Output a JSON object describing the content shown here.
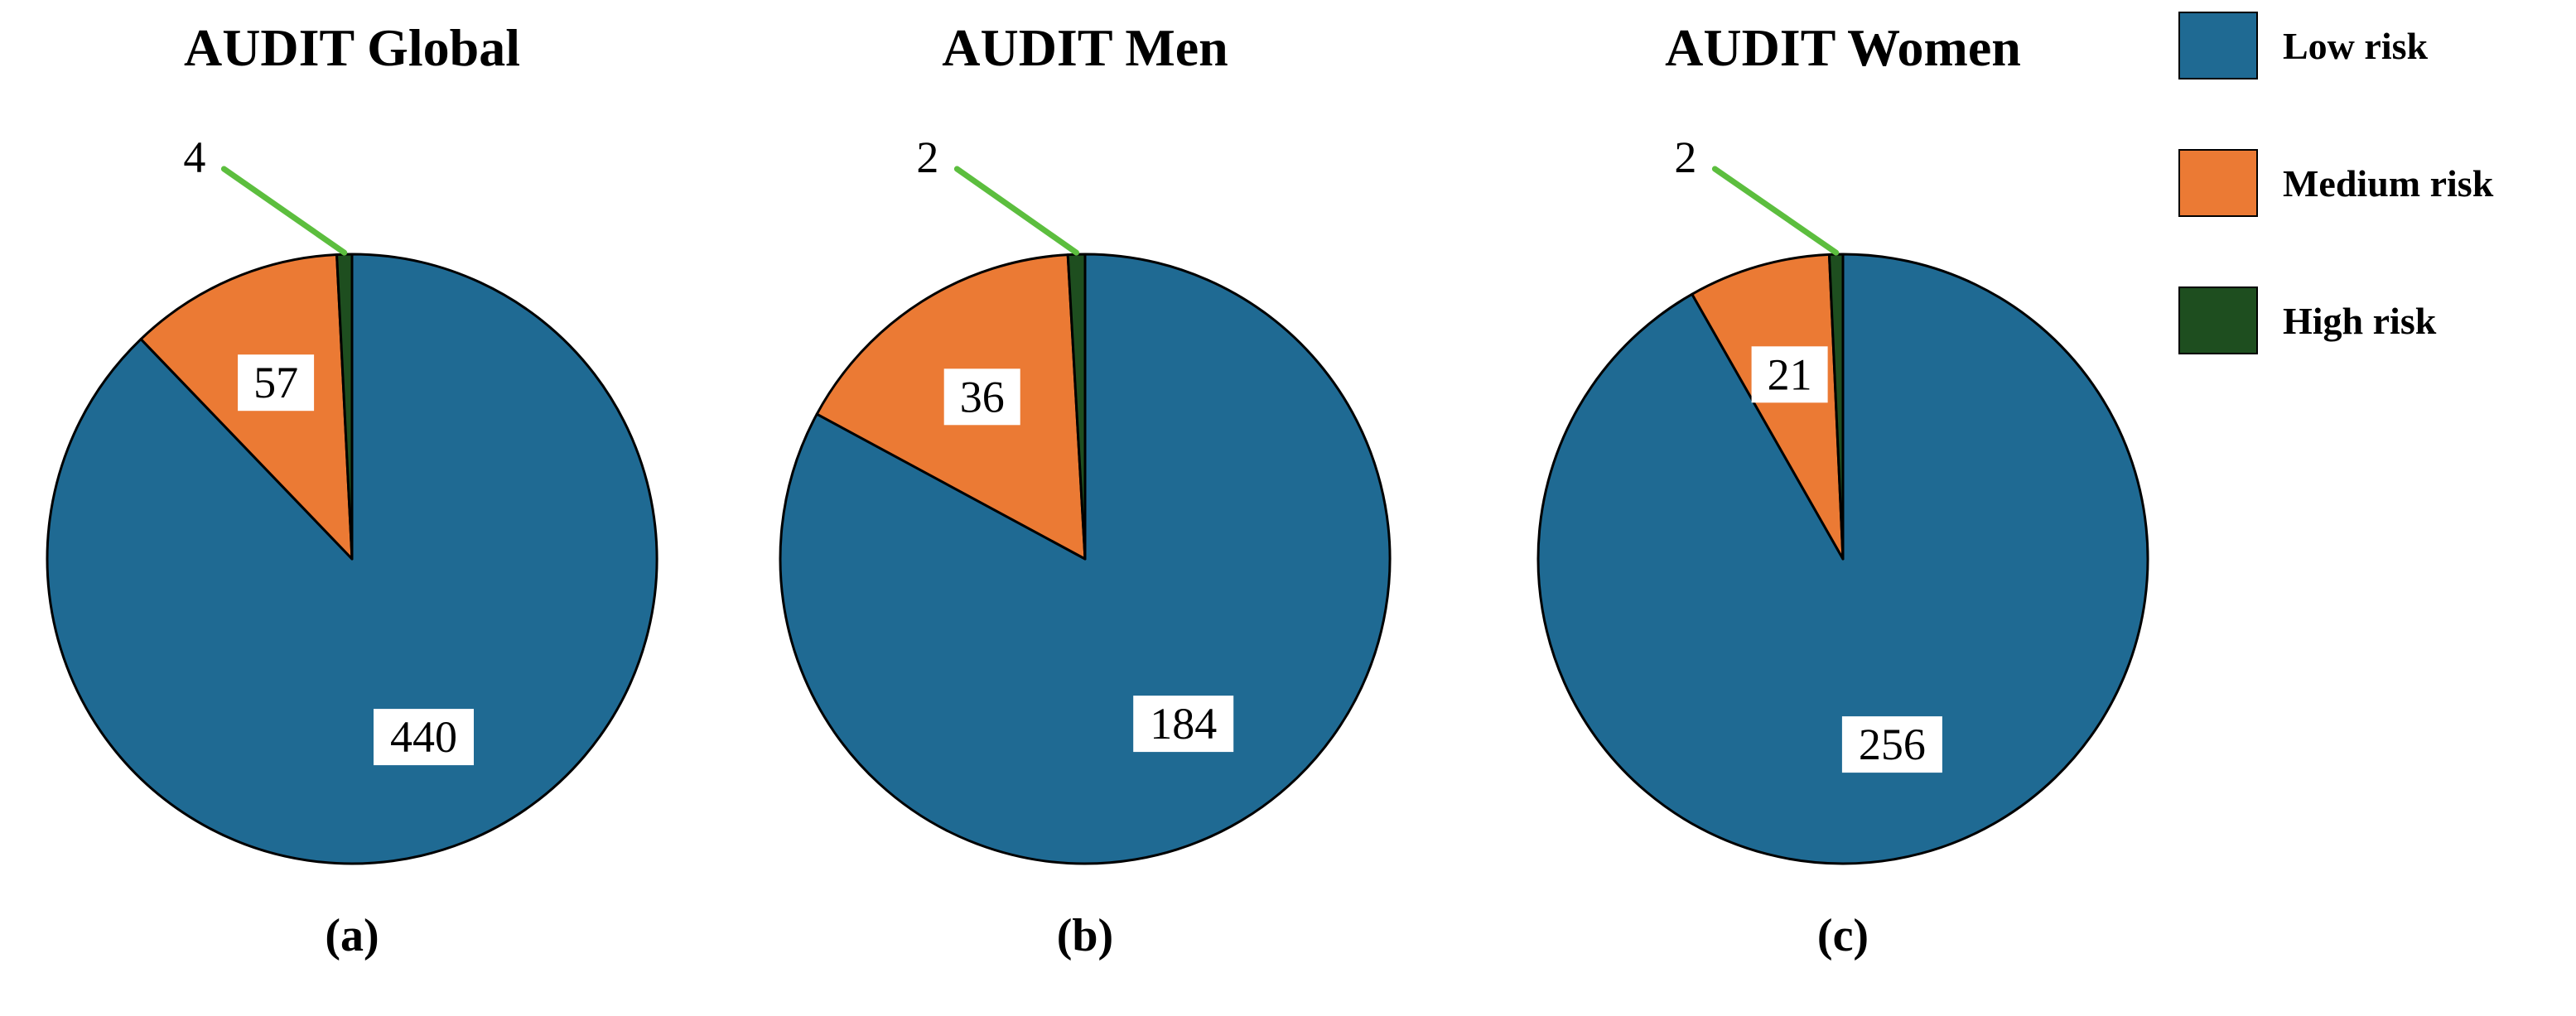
{
  "figure": {
    "background": "#ffffff"
  },
  "colors": {
    "low_risk": "#1F6A93",
    "medium_risk": "#EB7A34",
    "high_risk": "#1E4E1F",
    "leader_line": "#5CBE3E",
    "slice_outline": "#000000",
    "label_box": "#ffffff",
    "text": "#000000"
  },
  "legend": {
    "position": "upper right",
    "items": [
      {
        "label": "Low risk",
        "color_key": "low_risk"
      },
      {
        "label": "Medium risk",
        "color_key": "medium_risk"
      },
      {
        "label": "High risk",
        "color_key": "high_risk"
      }
    ]
  },
  "chart_data": [
    {
      "type": "pie",
      "title": "AUDIT Global",
      "caption": "(a)",
      "categories": [
        "Low risk",
        "Medium risk",
        "High risk"
      ],
      "values": [
        440,
        57,
        4
      ],
      "start_angle": "12-oclock",
      "direction": "clockwise",
      "outside_label_category": "High risk"
    },
    {
      "type": "pie",
      "title": "AUDIT Men",
      "caption": "(b)",
      "categories": [
        "Low risk",
        "Medium risk",
        "High risk"
      ],
      "values": [
        184,
        36,
        2
      ],
      "start_angle": "12-oclock",
      "direction": "clockwise",
      "outside_label_category": "High risk"
    },
    {
      "type": "pie",
      "title": "AUDIT Women",
      "caption": "(c)",
      "categories": [
        "Low risk",
        "Medium risk",
        "High risk"
      ],
      "values": [
        256,
        21,
        2
      ],
      "start_angle": "12-oclock",
      "direction": "clockwise",
      "outside_label_category": "High risk"
    }
  ]
}
